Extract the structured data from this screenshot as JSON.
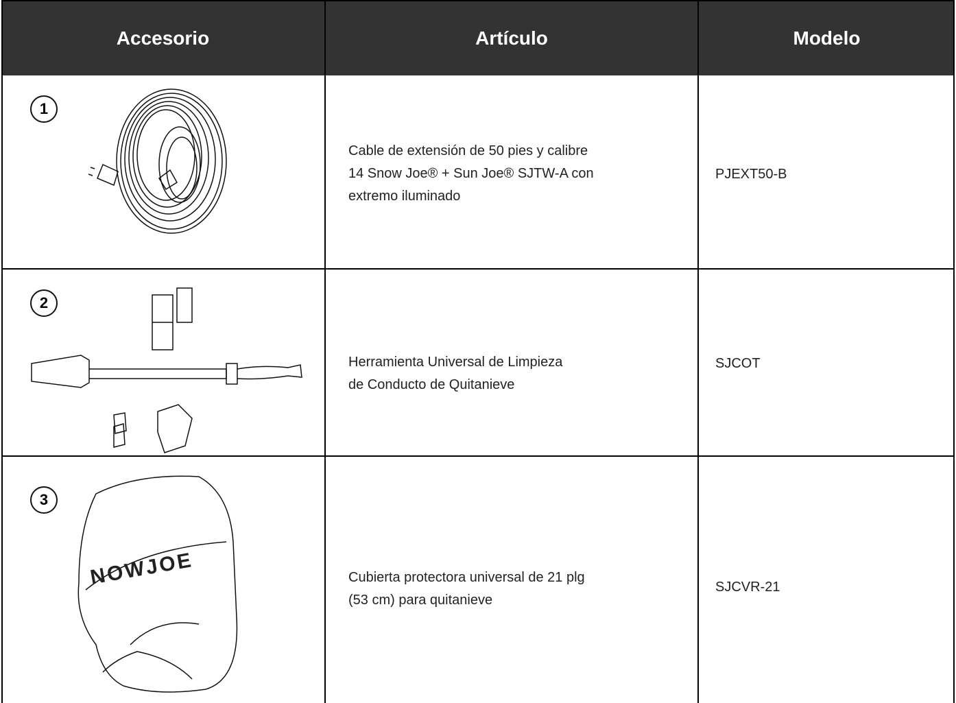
{
  "header": {
    "cells": [
      "Accesorio",
      "Artículo",
      "Modelo"
    ]
  },
  "table": {
    "rows": [
      {
        "number": "1",
        "item": [
          "Cable de extensión de 50 pies y calibre",
          "14 Snow Joe® + Sun Joe® SJTW-A con",
          "extremo iluminado"
        ],
        "model": "PJEXT50-B"
      },
      {
        "number": "2",
        "item": [
          "Herramienta Universal de Limpieza",
          "de Conducto de Quitanieve"
        ],
        "model": "SJCOT"
      },
      {
        "number": "3",
        "item": [
          "Cubierta protectora universal de 21 plg",
          "(53 cm) para quitanieve"
        ],
        "model": "SJCVR-21",
        "logo": "NOWJOE"
      }
    ]
  }
}
